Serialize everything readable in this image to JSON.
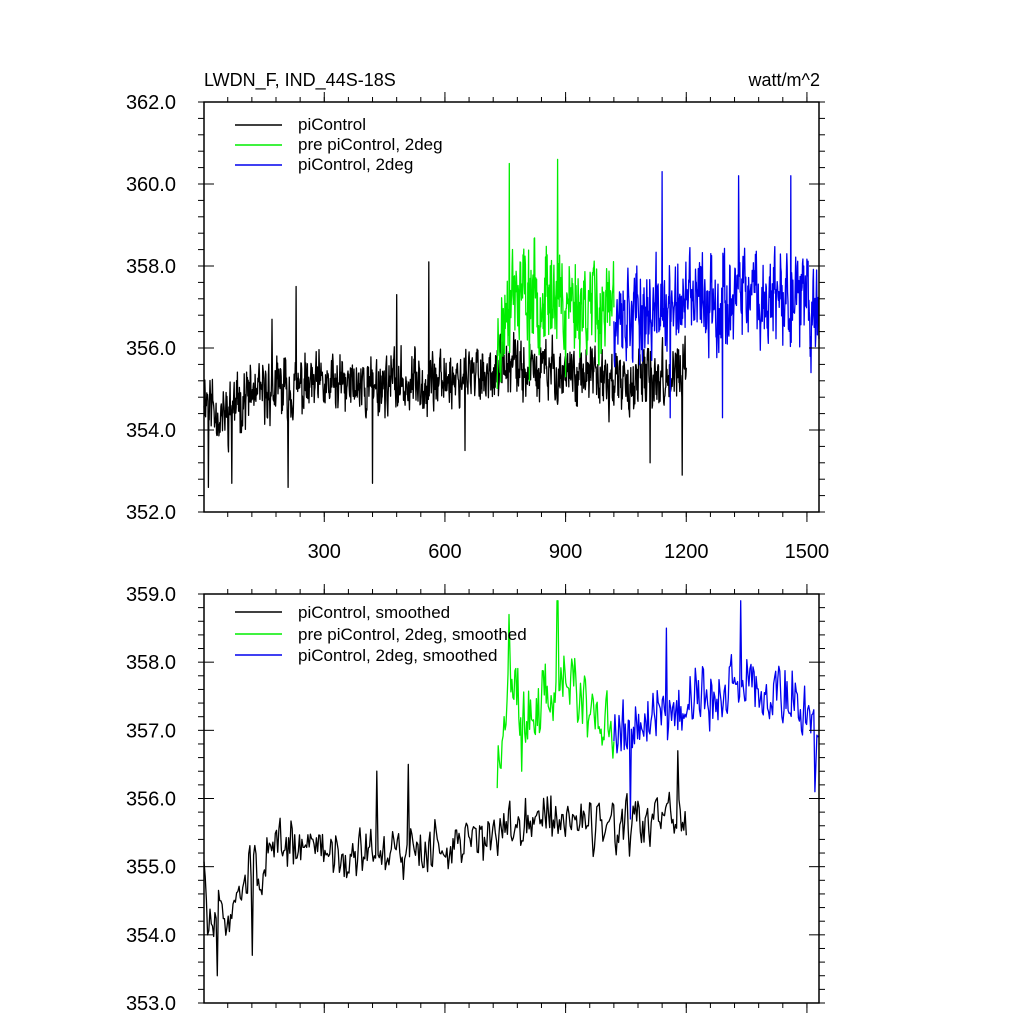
{
  "colors": {
    "black": "#000000",
    "green": "#00ee00",
    "blue": "#0000ee"
  },
  "chart_data": [
    {
      "type": "line",
      "title": "LWDN_F, IND_44S-18S",
      "units_label": "watt/m^2",
      "xlim": [
        1,
        1530
      ],
      "ylim": [
        352.0,
        362.0
      ],
      "y_ticks": [
        352.0,
        354.0,
        356.0,
        358.0,
        360.0,
        362.0
      ],
      "y_tick_labels": [
        "352.0",
        "354.0",
        "356.0",
        "358.0",
        "360.0",
        "362.0"
      ],
      "x_ticks": [
        300,
        600,
        900,
        1200,
        1500
      ],
      "x_tick_labels": [
        "300",
        "600",
        "900",
        "1200",
        "1500"
      ],
      "series": [
        {
          "name": "piControl",
          "color": "#000000",
          "x_start": 1,
          "x_end": 1200,
          "n": 1200,
          "base": [
            [
              1,
              355.0
            ],
            [
              40,
              354.3
            ],
            [
              100,
              354.8
            ],
            [
              200,
              355.0
            ],
            [
              400,
              355.1
            ],
            [
              600,
              355.2
            ],
            [
              750,
              355.5
            ],
            [
              900,
              355.4
            ],
            [
              1050,
              355.1
            ],
            [
              1200,
              355.4
            ]
          ],
          "noise_amp": 0.85,
          "seed": 11,
          "spikes": [
            [
              12,
              352.6
            ],
            [
              70,
              352.7
            ],
            [
              170,
              356.7
            ],
            [
              210,
              352.6
            ],
            [
              230,
              357.5
            ],
            [
              420,
              352.7
            ],
            [
              480,
              357.3
            ],
            [
              560,
              358.1
            ],
            [
              650,
              353.5
            ],
            [
              1110,
              353.2
            ],
            [
              1190,
              352.9
            ]
          ]
        },
        {
          "name": "pre piControl, 2deg",
          "color": "#00ee00",
          "x_start": 730,
          "x_end": 1020,
          "n": 291,
          "base": [
            [
              730,
              355.9
            ],
            [
              760,
              357.3
            ],
            [
              860,
              357.3
            ],
            [
              1020,
              356.9
            ]
          ],
          "noise_amp": 1.4,
          "seed": 23,
          "spikes": [
            [
              730,
              355.0
            ],
            [
              760,
              360.5
            ],
            [
              810,
              355.2
            ],
            [
              880,
              360.6
            ],
            [
              900,
              355.3
            ]
          ]
        },
        {
          "name": "piControl, 2deg",
          "color": "#0000ee",
          "x_start": 1020,
          "x_end": 1530,
          "n": 511,
          "base": [
            [
              1020,
              356.8
            ],
            [
              1100,
              356.8
            ],
            [
              1250,
              357.2
            ],
            [
              1400,
              357.2
            ],
            [
              1530,
              357.0
            ]
          ],
          "noise_amp": 1.3,
          "seed": 37,
          "spikes": [
            [
              1140,
              360.3
            ],
            [
              1160,
              354.3
            ],
            [
              1290,
              354.3
            ],
            [
              1330,
              360.2
            ],
            [
              1460,
              360.2
            ],
            [
              1510,
              355.4
            ]
          ]
        }
      ],
      "legend_position": "top-left"
    },
    {
      "type": "line",
      "xlim": [
        1,
        1530
      ],
      "ylim": [
        353.0,
        359.0
      ],
      "y_ticks": [
        353.0,
        354.0,
        355.0,
        356.0,
        357.0,
        358.0,
        359.0
      ],
      "y_tick_labels": [
        "353.0",
        "354.0",
        "355.0",
        "356.0",
        "357.0",
        "358.0",
        "359.0"
      ],
      "x_ticks": [
        300,
        600,
        900,
        1200,
        1500
      ],
      "series": [
        {
          "name": "piControl, smoothed",
          "color": "#000000",
          "x_start": 1,
          "x_end": 1200,
          "n": 400,
          "base": [
            [
              1,
              355.0
            ],
            [
              10,
              354.1
            ],
            [
              60,
              354.3
            ],
            [
              100,
              354.9
            ],
            [
              200,
              355.3
            ],
            [
              400,
              355.2
            ],
            [
              600,
              355.3
            ],
            [
              750,
              355.5
            ],
            [
              850,
              355.8
            ],
            [
              1000,
              355.5
            ],
            [
              1200,
              355.7
            ]
          ],
          "noise_amp": 0.45,
          "seed": 51,
          "spikes": [
            [
              35,
              353.4
            ],
            [
              120,
              353.7
            ],
            [
              430,
              356.4
            ],
            [
              510,
              356.5
            ],
            [
              800,
              356.0
            ],
            [
              1180,
              356.7
            ]
          ]
        },
        {
          "name": "pre piControl, 2deg, smoothed",
          "color": "#00ee00",
          "x_start": 730,
          "x_end": 1020,
          "n": 120,
          "base": [
            [
              730,
              356.0
            ],
            [
              760,
              357.8
            ],
            [
              800,
              357.3
            ],
            [
              900,
              357.7
            ],
            [
              1020,
              357.0
            ]
          ],
          "noise_amp": 0.6,
          "seed": 63,
          "spikes": [
            [
              760,
              358.7
            ],
            [
              880,
              358.9
            ],
            [
              790,
              356.4
            ]
          ]
        },
        {
          "name": "piControl, 2deg, smoothed",
          "color": "#0000ee",
          "x_start": 1020,
          "x_end": 1530,
          "n": 200,
          "base": [
            [
              1020,
              357.0
            ],
            [
              1100,
              357.2
            ],
            [
              1300,
              357.6
            ],
            [
              1450,
              357.6
            ],
            [
              1530,
              357.0
            ]
          ],
          "noise_amp": 0.55,
          "seed": 79,
          "spikes": [
            [
              1150,
              358.5
            ],
            [
              1335,
              358.9
            ],
            [
              1060,
              355.7
            ],
            [
              1520,
              356.1
            ]
          ]
        }
      ],
      "legend_position": "top-left"
    }
  ]
}
